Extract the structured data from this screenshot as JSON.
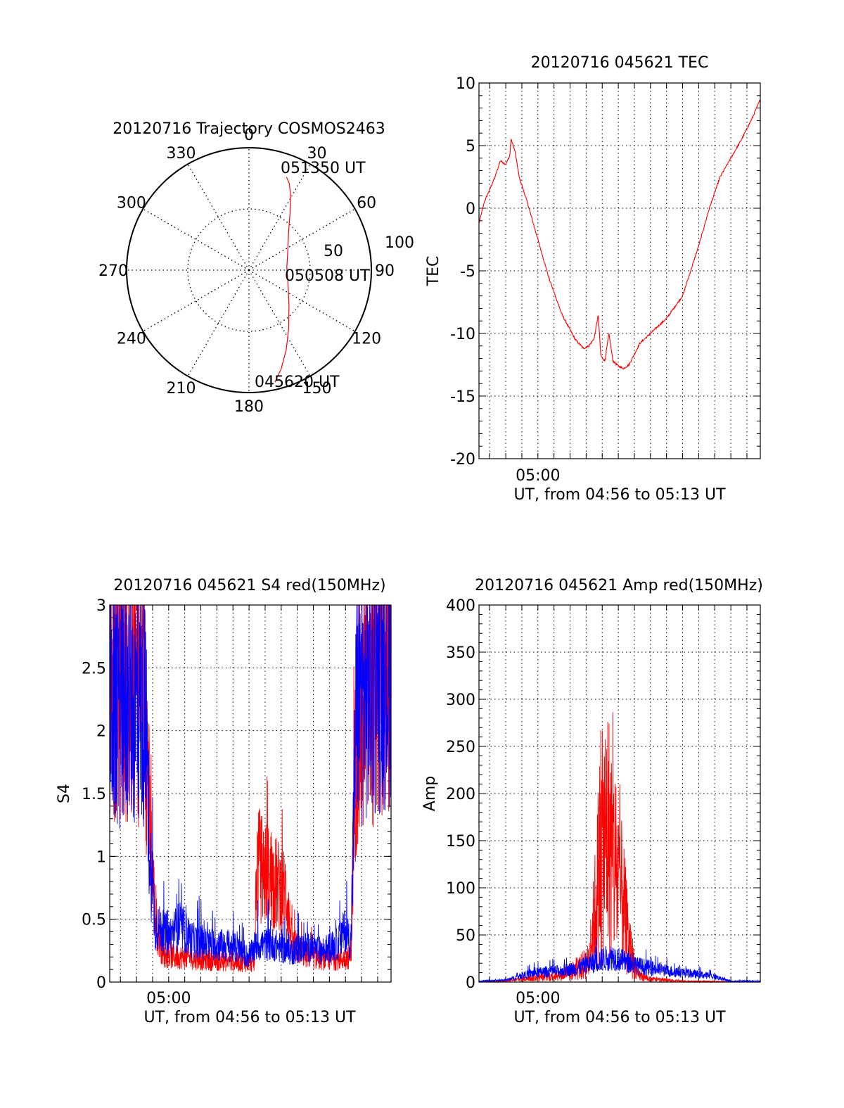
{
  "colors": {
    "red": "#ff0000",
    "blue": "#0000ff",
    "axis": "#000000",
    "grid": "#000000",
    "background": "#ffffff"
  },
  "chart_data": [
    {
      "id": "polar",
      "type": "scatter",
      "title": "20120716 Trajectory COSMOS2463",
      "coordinate_system": "polar (azimuth clockwise from north, radial = zenith angle)",
      "azimuth_labels": [
        "0",
        "30",
        "60",
        "90",
        "120",
        "150",
        "180",
        "210",
        "240",
        "270",
        "300",
        "330"
      ],
      "radius_labels": [
        "50",
        "100"
      ],
      "rlim": [
        0,
        100
      ],
      "grid": true,
      "trajectory": {
        "color": "#ff0000",
        "points": [
          {
            "az": 167,
            "r": 94
          },
          {
            "az": 162,
            "r": 85
          },
          {
            "az": 155,
            "r": 72
          },
          {
            "az": 146,
            "r": 58
          },
          {
            "az": 132,
            "r": 44
          },
          {
            "az": 110,
            "r": 34
          },
          {
            "az": 86,
            "r": 31
          },
          {
            "az": 62,
            "r": 36
          },
          {
            "az": 46,
            "r": 45
          },
          {
            "az": 36,
            "r": 57
          },
          {
            "az": 29,
            "r": 70
          },
          {
            "az": 25,
            "r": 78
          },
          {
            "az": 22,
            "r": 82
          }
        ]
      },
      "annotations": [
        "051350 UT",
        "050508 UT",
        "045620 UT"
      ]
    },
    {
      "id": "tec",
      "type": "line",
      "title": "20120716 045621 TEC",
      "xlabel": "UT, from 04:56 to 05:13 UT",
      "ylabel": "TEC",
      "xlim": [
        "04:56:20",
        "05:13:50"
      ],
      "ylim": [
        -20,
        10
      ],
      "yticks": [
        10,
        5,
        0,
        -5,
        -10,
        -15,
        -20
      ],
      "xtick_label": {
        "time": "05:00:00",
        "label": "05:00"
      },
      "grid": true,
      "series": [
        {
          "color": "#ff0000",
          "noise": 0.15,
          "points": [
            [
              "04:56:20",
              -1.2
            ],
            [
              "04:56:40",
              0.5
            ],
            [
              "04:57:00",
              1.5
            ],
            [
              "04:57:20",
              2.5
            ],
            [
              "04:57:40",
              3.8
            ],
            [
              "04:58:00",
              3.5
            ],
            [
              "04:58:15",
              4.2
            ],
            [
              "04:58:20",
              5.5
            ],
            [
              "04:58:35",
              4.5
            ],
            [
              "04:58:50",
              2.5
            ],
            [
              "04:59:20",
              0.5
            ],
            [
              "05:00:00",
              -2.5
            ],
            [
              "05:00:40",
              -5.5
            ],
            [
              "05:01:30",
              -8.5
            ],
            [
              "05:02:20",
              -10.5
            ],
            [
              "05:02:50",
              -11.2
            ],
            [
              "05:03:10",
              -11.0
            ],
            [
              "05:03:30",
              -10.4
            ],
            [
              "05:03:45",
              -8.5
            ],
            [
              "05:03:55",
              -11.8
            ],
            [
              "05:04:10",
              -12.2
            ],
            [
              "05:04:25",
              -10.0
            ],
            [
              "05:04:40",
              -12.2
            ],
            [
              "05:05:00",
              -12.6
            ],
            [
              "05:05:20",
              -12.8
            ],
            [
              "05:05:40",
              -12.5
            ],
            [
              "05:06:20",
              -10.8
            ],
            [
              "05:07:00",
              -10.0
            ],
            [
              "05:08:00",
              -8.8
            ],
            [
              "05:09:00",
              -7.0
            ],
            [
              "05:10:00",
              -3.0
            ],
            [
              "05:10:40",
              0.0
            ],
            [
              "05:11:20",
              2.5
            ],
            [
              "05:12:00",
              4.0
            ],
            [
              "05:12:40",
              5.5
            ],
            [
              "05:13:20",
              7.2
            ],
            [
              "05:13:50",
              8.7
            ]
          ]
        }
      ]
    },
    {
      "id": "s4",
      "type": "line",
      "title": "20120716 045621 S4 red(150MHz)",
      "xlabel": "UT, from 04:56 to 05:13 UT",
      "ylabel": "S4",
      "xlim": [
        "04:56:20",
        "05:13:50"
      ],
      "ylim": [
        0,
        3
      ],
      "yticks": [
        3,
        2.5,
        2,
        1.5,
        1,
        0.5,
        0
      ],
      "ytick_labels": [
        "3",
        "2.5",
        "2",
        "1.5",
        "1",
        "0.5",
        "0"
      ],
      "xtick_label": {
        "time": "05:00:00",
        "label": "05:00"
      },
      "grid": true,
      "series": [
        {
          "color": "#ff0000",
          "noise": 0.5,
          "points": [
            [
              "04:56:20",
              2.5
            ],
            [
              "04:58:30",
              2.4
            ],
            [
              "04:58:50",
              1.2
            ],
            [
              "04:59:10",
              0.5
            ],
            [
              "04:59:40",
              0.22
            ],
            [
              "05:00:20",
              0.2
            ],
            [
              "05:01:00",
              0.2
            ],
            [
              "05:02:00",
              0.18
            ],
            [
              "05:03:00",
              0.17
            ],
            [
              "05:04:00",
              0.16
            ],
            [
              "05:05:20",
              0.15
            ],
            [
              "05:05:30",
              0.95
            ],
            [
              "05:06:30",
              0.8
            ],
            [
              "05:07:20",
              0.7
            ],
            [
              "05:07:40",
              0.3
            ],
            [
              "05:08:30",
              0.22
            ],
            [
              "05:09:30",
              0.18
            ],
            [
              "05:10:30",
              0.18
            ],
            [
              "05:11:20",
              0.2
            ],
            [
              "05:11:40",
              2.0
            ],
            [
              "05:13:50",
              2.6
            ]
          ]
        },
        {
          "color": "#0000ff",
          "noise": 0.45,
          "points": [
            [
              "04:56:20",
              2.2
            ],
            [
              "04:58:30",
              2.2
            ],
            [
              "04:58:50",
              1.0
            ],
            [
              "04:59:10",
              0.45
            ],
            [
              "05:00:00",
              0.36
            ],
            [
              "05:00:40",
              0.45
            ],
            [
              "05:01:30",
              0.33
            ],
            [
              "05:02:20",
              0.3
            ],
            [
              "05:03:00",
              0.3
            ],
            [
              "05:04:00",
              0.28
            ],
            [
              "05:05:00",
              0.2
            ],
            [
              "05:05:30",
              0.3
            ],
            [
              "05:06:30",
              0.3
            ],
            [
              "05:07:30",
              0.24
            ],
            [
              "05:08:30",
              0.28
            ],
            [
              "05:09:30",
              0.25
            ],
            [
              "05:10:30",
              0.3
            ],
            [
              "05:11:00",
              0.42
            ],
            [
              "05:11:20",
              0.3
            ],
            [
              "05:11:40",
              2.2
            ],
            [
              "05:13:50",
              2.5
            ]
          ]
        }
      ]
    },
    {
      "id": "amp",
      "type": "line",
      "title": "20120716 045621 Amp red(150MHz)",
      "xlabel": "UT, from 04:56 to 05:13 UT",
      "ylabel": "Amp",
      "xlim": [
        "04:56:20",
        "05:13:50"
      ],
      "ylim": [
        0,
        400
      ],
      "yticks": [
        400,
        350,
        300,
        250,
        200,
        150,
        100,
        50,
        0
      ],
      "xtick_label": {
        "time": "05:00:00",
        "label": "05:00"
      },
      "grid": true,
      "series": [
        {
          "color": "#ff0000",
          "noise": 0.9,
          "points": [
            [
              "04:56:20",
              0
            ],
            [
              "04:58:00",
              1
            ],
            [
              "04:59:30",
              4
            ],
            [
              "05:00:30",
              6
            ],
            [
              "05:01:30",
              8
            ],
            [
              "05:02:30",
              14
            ],
            [
              "05:03:10",
              22
            ],
            [
              "05:03:30",
              65
            ],
            [
              "05:03:50",
              130
            ],
            [
              "05:04:20",
              160
            ],
            [
              "05:04:50",
              120
            ],
            [
              "05:05:20",
              80
            ],
            [
              "05:05:40",
              40
            ],
            [
              "05:06:10",
              8
            ],
            [
              "05:07:00",
              3
            ],
            [
              "05:09:00",
              1
            ],
            [
              "05:13:50",
              0
            ]
          ]
        },
        {
          "color": "#0000ff",
          "noise": 0.55,
          "points": [
            [
              "04:56:20",
              1
            ],
            [
              "04:58:00",
              2
            ],
            [
              "04:59:30",
              9
            ],
            [
              "05:00:30",
              11
            ],
            [
              "05:01:30",
              12
            ],
            [
              "05:02:30",
              15
            ],
            [
              "05:03:20",
              20
            ],
            [
              "05:04:00",
              24
            ],
            [
              "05:04:40",
              27
            ],
            [
              "05:05:20",
              22
            ],
            [
              "05:06:00",
              18
            ],
            [
              "05:07:00",
              15
            ],
            [
              "05:08:00",
              12
            ],
            [
              "05:09:00",
              10
            ],
            [
              "05:10:00",
              8
            ],
            [
              "05:11:00",
              6
            ],
            [
              "05:11:30",
              3
            ],
            [
              "05:12:00",
              1
            ],
            [
              "05:13:50",
              1
            ]
          ]
        }
      ]
    }
  ]
}
